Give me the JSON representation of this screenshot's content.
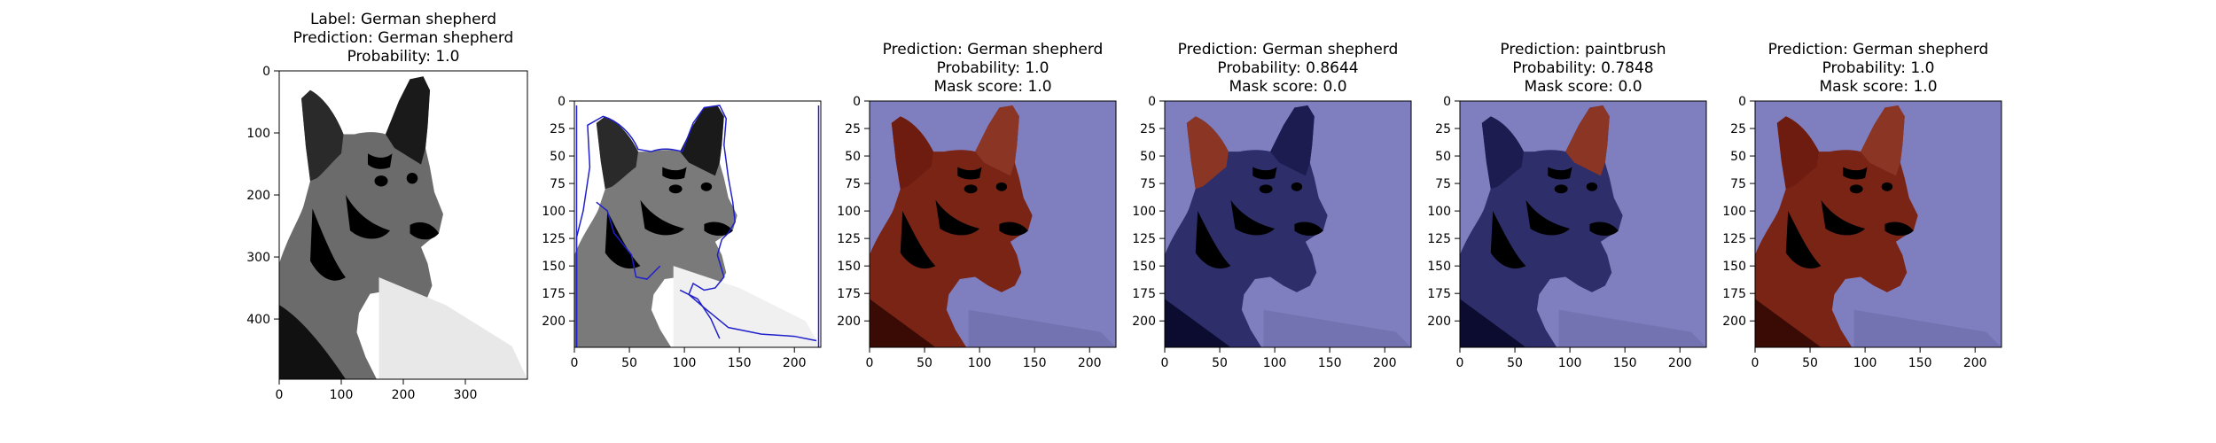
{
  "figure": {
    "panels": [
      {
        "id": "original",
        "title_lines": [
          "Label: German shepherd",
          "Prediction: German shepherd",
          "Probability: 1.0"
        ],
        "x_ticks": [
          "0",
          "100",
          "200",
          "300"
        ],
        "y_ticks": [
          "0",
          "100",
          "200",
          "300",
          "400"
        ]
      },
      {
        "id": "contours",
        "title_lines": [],
        "x_ticks": [
          "0",
          "50",
          "100",
          "150",
          "200"
        ],
        "y_ticks": [
          "0",
          "25",
          "50",
          "75",
          "100",
          "125",
          "150",
          "175",
          "200"
        ]
      },
      {
        "id": "mask-1",
        "title_lines": [
          "Prediction: German shepherd",
          "Probability: 1.0",
          "Mask score: 1.0"
        ],
        "x_ticks": [
          "0",
          "50",
          "100",
          "150",
          "200"
        ],
        "y_ticks": [
          "0",
          "25",
          "50",
          "75",
          "100",
          "125",
          "150",
          "175",
          "200"
        ]
      },
      {
        "id": "mask-2",
        "title_lines": [
          "Prediction: German shepherd",
          "Probability: 0.8644",
          "Mask score: 0.0"
        ],
        "x_ticks": [
          "0",
          "50",
          "100",
          "150",
          "200"
        ],
        "y_ticks": [
          "0",
          "25",
          "50",
          "75",
          "100",
          "125",
          "150",
          "175",
          "200"
        ]
      },
      {
        "id": "mask-3",
        "title_lines": [
          "Prediction: paintbrush",
          "Probability: 0.7848",
          "Mask score: 0.0"
        ],
        "x_ticks": [
          "0",
          "50",
          "100",
          "150",
          "200"
        ],
        "y_ticks": [
          "0",
          "25",
          "50",
          "75",
          "100",
          "125",
          "150",
          "175",
          "200"
        ]
      },
      {
        "id": "mask-4",
        "title_lines": [
          "Prediction: German shepherd",
          "Probability: 1.0",
          "Mask score: 1.0"
        ],
        "x_ticks": [
          "0",
          "50",
          "100",
          "150",
          "200"
        ],
        "y_ticks": [
          "0",
          "25",
          "50",
          "75",
          "100",
          "125",
          "150",
          "175",
          "200"
        ]
      }
    ],
    "colors": {
      "mask_overlay_blue": "#7f7fbf",
      "mask_highlight_red": "#7a1d10",
      "contour_blue": "#1f1fcc",
      "axis": "#000000"
    }
  }
}
